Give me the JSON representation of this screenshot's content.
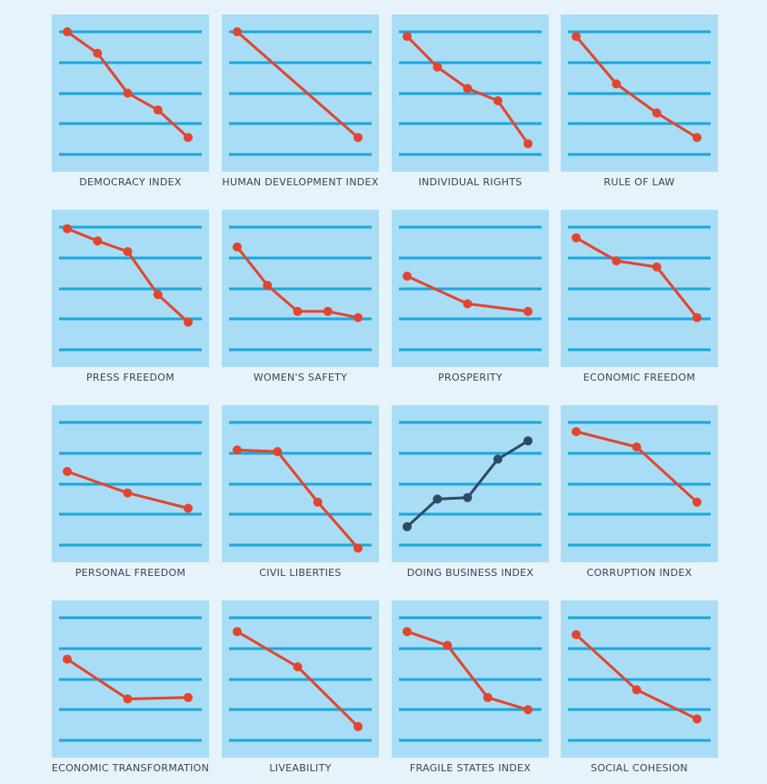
{
  "chart_data": [
    {
      "type": "line",
      "title": "DEMOCRACY INDEX",
      "x": [
        1,
        2,
        3,
        4,
        5
      ],
      "y": [
        4.0,
        3.3,
        2.0,
        1.45,
        0.55
      ],
      "series_color": "#e2452f"
    },
    {
      "type": "line",
      "title": "HUMAN DEVELOPMENT INDEX",
      "x": [
        1,
        2
      ],
      "y": [
        4.0,
        0.55
      ],
      "series_color": "#e2452f"
    },
    {
      "type": "line",
      "title": "INDIVIDUAL RIGHTS",
      "x": [
        1,
        2,
        3,
        4,
        5
      ],
      "y": [
        3.85,
        2.85,
        2.15,
        1.75,
        0.35
      ],
      "series_color": "#e2452f"
    },
    {
      "type": "line",
      "title": "RULE OF LAW",
      "x": [
        1,
        2,
        3,
        4
      ],
      "y": [
        3.85,
        2.3,
        1.35,
        0.55
      ],
      "series_color": "#e2452f"
    },
    {
      "type": "line",
      "title": "PRESS FREEDOM",
      "x": [
        1,
        2,
        3,
        4,
        5
      ],
      "y": [
        3.95,
        3.55,
        3.2,
        1.8,
        0.9
      ],
      "series_color": "#e2452f"
    },
    {
      "type": "line",
      "title": "WOMEN'S SAFETY",
      "x": [
        1,
        2,
        3,
        4,
        5
      ],
      "y": [
        3.35,
        2.1,
        1.25,
        1.25,
        1.05
      ],
      "series_color": "#e2452f"
    },
    {
      "type": "line",
      "title": "PROSPERITY",
      "x": [
        1,
        2,
        3
      ],
      "y": [
        2.4,
        1.5,
        1.25
      ],
      "series_color": "#e2452f"
    },
    {
      "type": "line",
      "title": "ECONOMIC FREEDOM",
      "x": [
        1,
        2,
        3,
        4
      ],
      "y": [
        3.65,
        2.9,
        2.7,
        1.05
      ],
      "series_color": "#e2452f"
    },
    {
      "type": "line",
      "title": "PERSONAL FREEDOM",
      "x": [
        1,
        2,
        3
      ],
      "y": [
        2.4,
        1.7,
        1.2
      ],
      "series_color": "#e2452f"
    },
    {
      "type": "line",
      "title": "CIVIL LIBERTIES",
      "x": [
        1,
        2,
        3,
        4
      ],
      "y": [
        3.1,
        3.05,
        1.4,
        -0.1
      ],
      "series_color": "#e2452f"
    },
    {
      "type": "line",
      "title": "DOING BUSINESS INDEX",
      "x": [
        1,
        2,
        3,
        4,
        5
      ],
      "y": [
        0.6,
        1.5,
        1.55,
        2.8,
        3.4
      ],
      "series_color": "#2e4a66"
    },
    {
      "type": "line",
      "title": "CORRUPTION INDEX",
      "x": [
        1,
        2,
        3
      ],
      "y": [
        3.7,
        3.2,
        1.4
      ],
      "series_color": "#e2452f"
    },
    {
      "type": "line",
      "title": "ECONOMIC TRANSFORMATION",
      "x": [
        1,
        2,
        3
      ],
      "y": [
        2.65,
        1.35,
        1.4
      ],
      "series_color": "#e2452f"
    },
    {
      "type": "line",
      "title": "LIVEABILITY",
      "x": [
        1,
        2,
        3
      ],
      "y": [
        3.55,
        2.4,
        0.45
      ],
      "series_color": "#e2452f"
    },
    {
      "type": "line",
      "title": "FRAGILE STATES INDEX",
      "x": [
        1,
        2,
        3,
        4
      ],
      "y": [
        3.55,
        3.1,
        1.4,
        1.0
      ],
      "series_color": "#e2452f"
    },
    {
      "type": "line",
      "title": "SOCIAL COHESION",
      "x": [
        1,
        2,
        3
      ],
      "y": [
        3.45,
        1.65,
        0.7
      ],
      "series_color": "#e2452f"
    }
  ],
  "colors": {
    "page_background": "#e6f3fa",
    "panel_background": "#a9ddf5",
    "gridline": "#19a8dc",
    "declining_series": "#e2452f",
    "rising_series": "#2e4a66",
    "label_text": "#3a4550"
  }
}
